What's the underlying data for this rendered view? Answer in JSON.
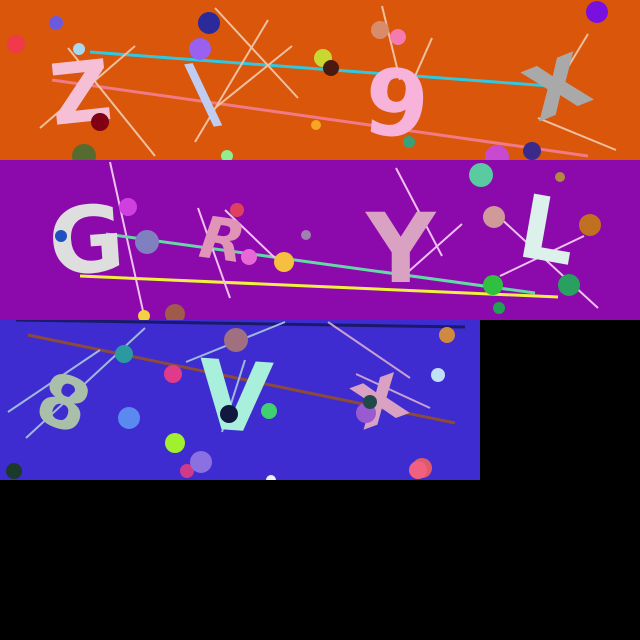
{
  "captcha_grid": {
    "background": "#000000",
    "panels": [
      {
        "background": "#d9560a",
        "characters": [
          {
            "text": "Z",
            "color": "#f5bfd6"
          },
          {
            "text": "\\",
            "color": "#c0ccf0"
          },
          {
            "text": "9",
            "color": "#f7b3d9"
          },
          {
            "text": "x",
            "color": "#a9a9a9"
          }
        ]
      },
      {
        "background": "#8c0aac",
        "characters": [
          {
            "text": "G",
            "color": "#dedede"
          },
          {
            "text": "R",
            "color": "#e094b8"
          },
          {
            "text": "Y",
            "color": "#d9a2c3"
          },
          {
            "text": "L",
            "color": "#dcf0ec"
          }
        ]
      },
      {
        "background": "#3e2cd0",
        "characters": [
          {
            "text": "8",
            "color": "#a9bfa9"
          },
          {
            "text": "V",
            "color": "#a8f0dc"
          },
          {
            "text": "x",
            "color": "#d9a2c3"
          }
        ]
      }
    ]
  }
}
